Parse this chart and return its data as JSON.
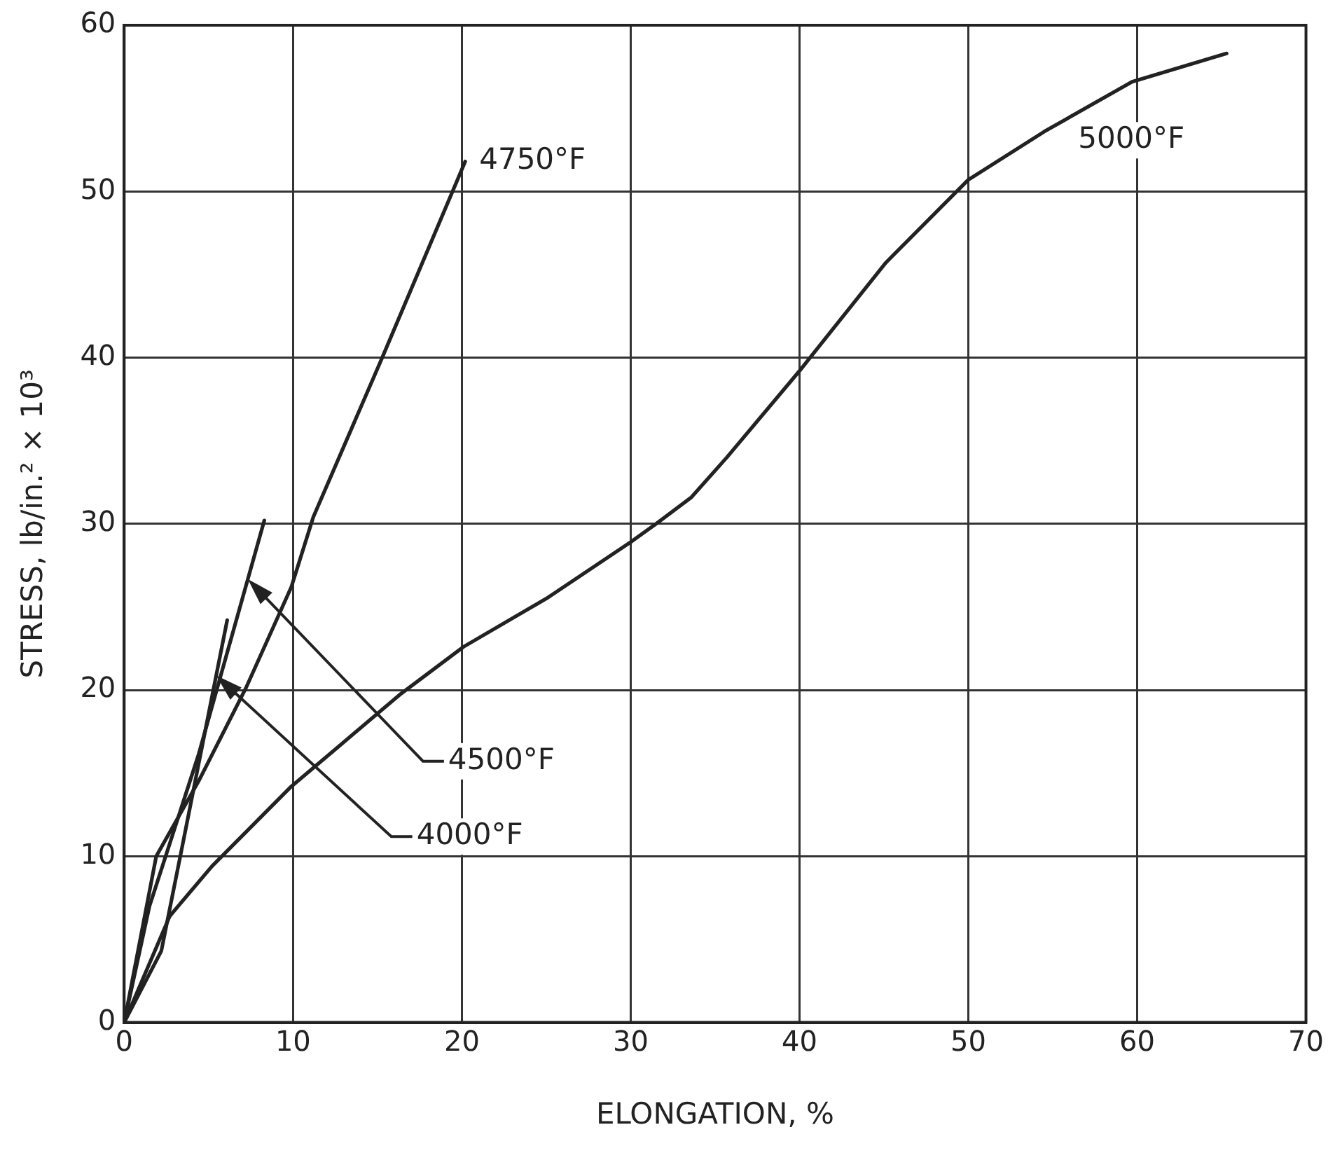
{
  "chart_data": {
    "type": "line",
    "xlabel": "ELONGATION, %",
    "ylabel": "STRESS, lb/in.² × 10³",
    "xlim": [
      0,
      70
    ],
    "ylim": [
      0,
      60
    ],
    "xticks": [
      0,
      10,
      20,
      30,
      40,
      50,
      60,
      70
    ],
    "yticks": [
      0,
      10,
      20,
      30,
      40,
      50,
      60
    ],
    "grid": true,
    "legend": false,
    "marker": "none",
    "line_style": "solid",
    "series": [
      {
        "name": "4750°F",
        "color": "#222222",
        "x": [
          0,
          1.9,
          4.4,
          7.2,
          9.9,
          11.2,
          15.2,
          20.2
        ],
        "values": [
          0,
          10,
          14.5,
          20.1,
          26.2,
          30.4,
          39.8,
          51.8
        ]
      },
      {
        "name": "5000°F",
        "color": "#222222",
        "x": [
          0,
          2.7,
          5.2,
          9.9,
          12.7,
          16.3,
          20.1,
          25,
          30,
          31.5,
          33.6,
          35.7,
          40,
          45.1,
          50,
          54.5,
          59.7,
          65.3
        ],
        "values": [
          0,
          6.4,
          9.4,
          14.2,
          16.6,
          19.7,
          22.6,
          25.5,
          28.9,
          30,
          31.6,
          34,
          39.2,
          45.7,
          50.7,
          53.6,
          56.6,
          58.3
        ]
      },
      {
        "name": "4500°F",
        "color": "#222222",
        "x": [
          0,
          1.5,
          4.4,
          8.3
        ],
        "values": [
          0,
          7,
          16.1,
          30.2
        ]
      },
      {
        "name": "4000°F",
        "color": "#222222",
        "x": [
          0,
          2.2,
          3.5,
          6.1
        ],
        "values": [
          0,
          4.3,
          10.9,
          24.2
        ]
      }
    ]
  }
}
